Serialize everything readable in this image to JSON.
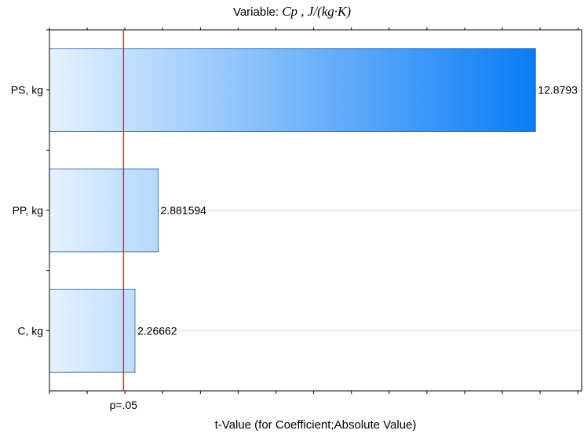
{
  "chart_data": {
    "type": "bar",
    "orientation": "horizontal",
    "title_prefix": "Variable: ",
    "title_variable": "Cp , J/(kg·K)",
    "xlabel": "t-Value (for Coefficient;Absolute Value)",
    "categories": [
      "PS, kg",
      "PP, kg",
      "C, kg"
    ],
    "values": [
      12.8793,
      2.881594,
      2.26662
    ],
    "value_labels": [
      "12.8793",
      "2.881594",
      "2.26662"
    ],
    "reference_line": {
      "value": 1.9623,
      "label": "p=.05",
      "color": "#e03030"
    },
    "xlim": [
      0,
      14.1
    ],
    "grid": "horizontal",
    "bar_gradient": {
      "from": "#e6f2ff",
      "to_full": "#0a7cf5"
    },
    "legend": "none"
  }
}
